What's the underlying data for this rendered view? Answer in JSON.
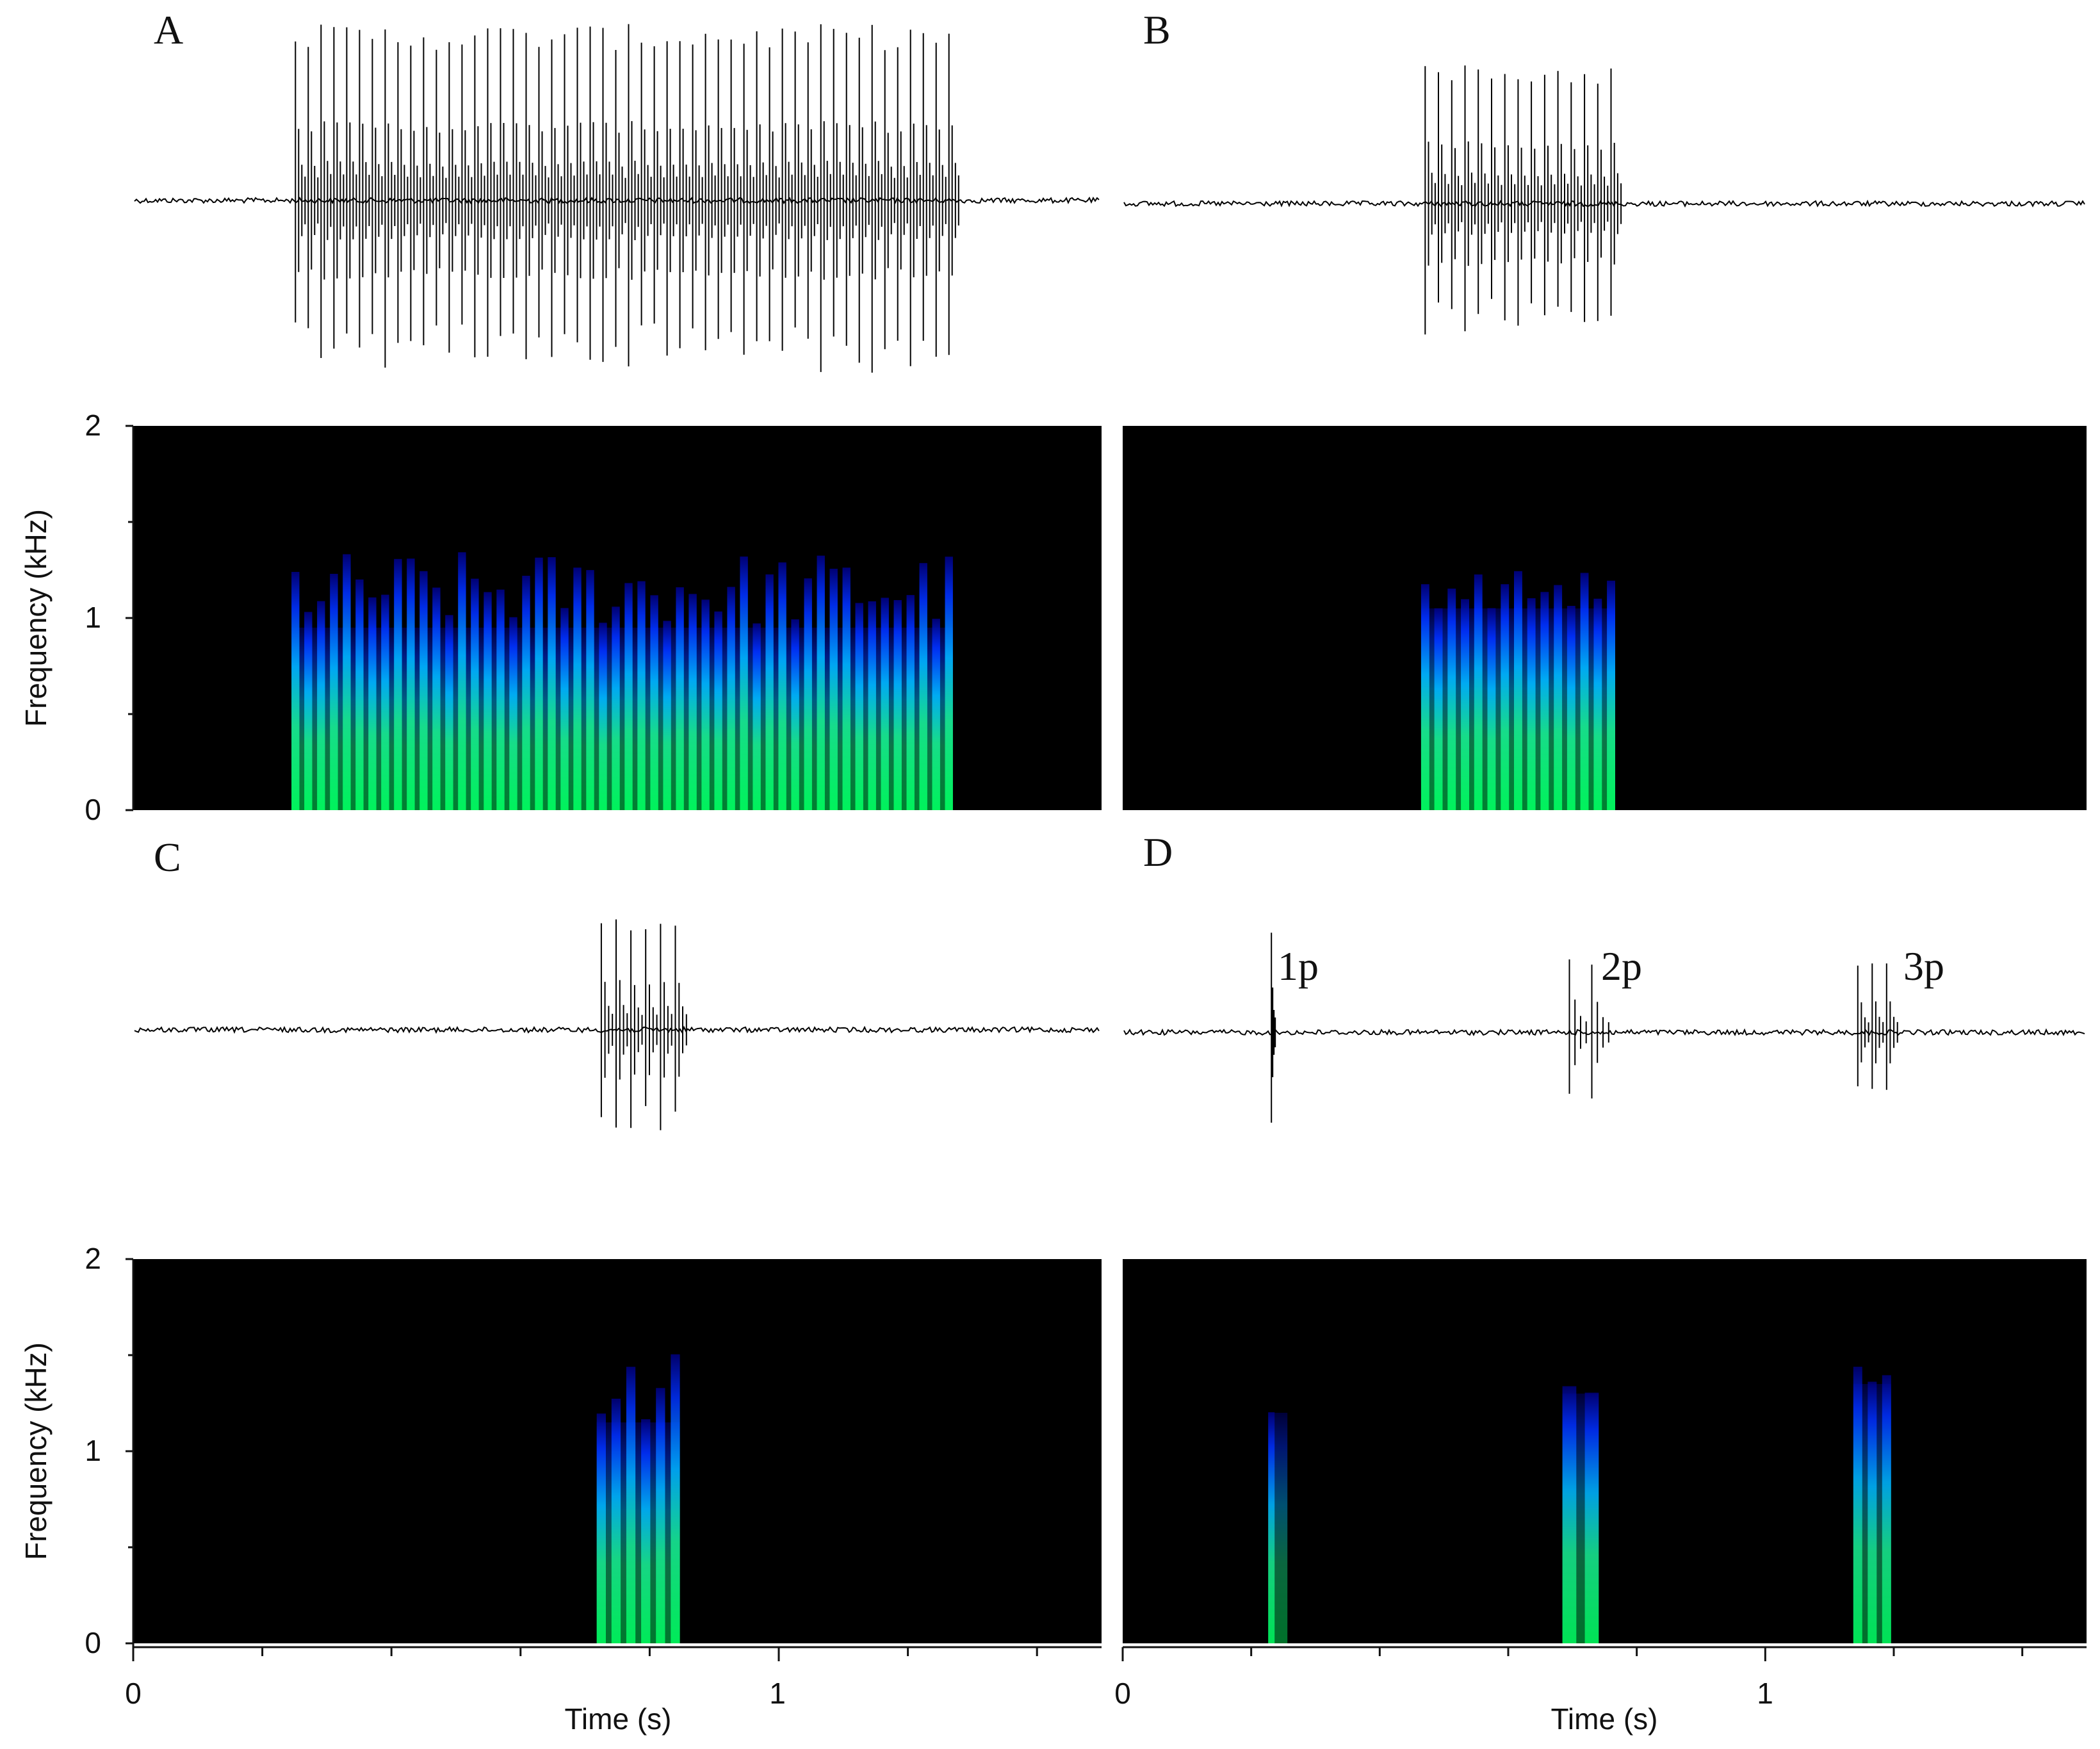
{
  "colors": {
    "background": "#ffffff",
    "spectrogram_background": "#000000",
    "waveform": "#000000",
    "axis": "#111111",
    "colormap": [
      "#00008b",
      "#0000ff",
      "#0090ff",
      "#00e5ff",
      "#00ff9a",
      "#28ff00",
      "#a8ff00",
      "#ffd400",
      "#ff3000"
    ]
  },
  "chart_data": [
    {
      "panel": "A",
      "type": "heatmap",
      "label": "A",
      "xlim": [
        0,
        1.5
      ],
      "ylim": [
        0,
        2
      ],
      "yticks": [
        0,
        1,
        2
      ],
      "ylabel": "Frequency (kHz)",
      "bursts": [
        {
          "start": 0.25,
          "end": 1.265,
          "pulses": 52,
          "peak_freq": 1.35,
          "band_freq": 0.95,
          "intensity": 0.9,
          "amp": 0.95
        }
      ]
    },
    {
      "panel": "B",
      "type": "heatmap",
      "label": "B",
      "xlim": [
        0,
        1.5
      ],
      "ylim": [
        0,
        2
      ],
      "bursts": [
        {
          "start": 0.47,
          "end": 0.76,
          "pulses": 15,
          "peak_freq": 1.25,
          "band_freq": 1.05,
          "intensity": 0.9,
          "amp": 0.75
        }
      ]
    },
    {
      "panel": "C",
      "type": "heatmap",
      "label": "C",
      "xlim": [
        0,
        1.5
      ],
      "ylim": [
        0,
        2
      ],
      "yticks": [
        0,
        1,
        2
      ],
      "ylabel": "Frequency (kHz)",
      "xticks": [
        0,
        1
      ],
      "xlabel": "Time (s)",
      "bursts": [
        {
          "start": 0.725,
          "end": 0.84,
          "pulses": 6,
          "peak_freq": 1.55,
          "band_freq": 1.15,
          "intensity": 0.85,
          "amp": 0.6
        }
      ]
    },
    {
      "panel": "D",
      "type": "heatmap",
      "label": "D",
      "xlim": [
        0,
        1.5
      ],
      "ylim": [
        0,
        2
      ],
      "xticks": [
        0,
        1
      ],
      "xlabel": "Time (s)",
      "bursts": [
        {
          "start": 0.23,
          "end": 0.25,
          "pulses": 1,
          "peak_freq": 1.3,
          "band_freq": 1.2,
          "intensity": 0.8,
          "amp": 0.6,
          "label": "1p"
        },
        {
          "start": 0.695,
          "end": 0.73,
          "pulses": 2,
          "peak_freq": 1.4,
          "band_freq": 1.3,
          "intensity": 0.8,
          "amp": 0.4,
          "label": "2p"
        },
        {
          "start": 1.145,
          "end": 1.19,
          "pulses": 3,
          "peak_freq": 1.45,
          "band_freq": 1.35,
          "intensity": 0.8,
          "amp": 0.4,
          "label": "3p"
        }
      ]
    }
  ]
}
